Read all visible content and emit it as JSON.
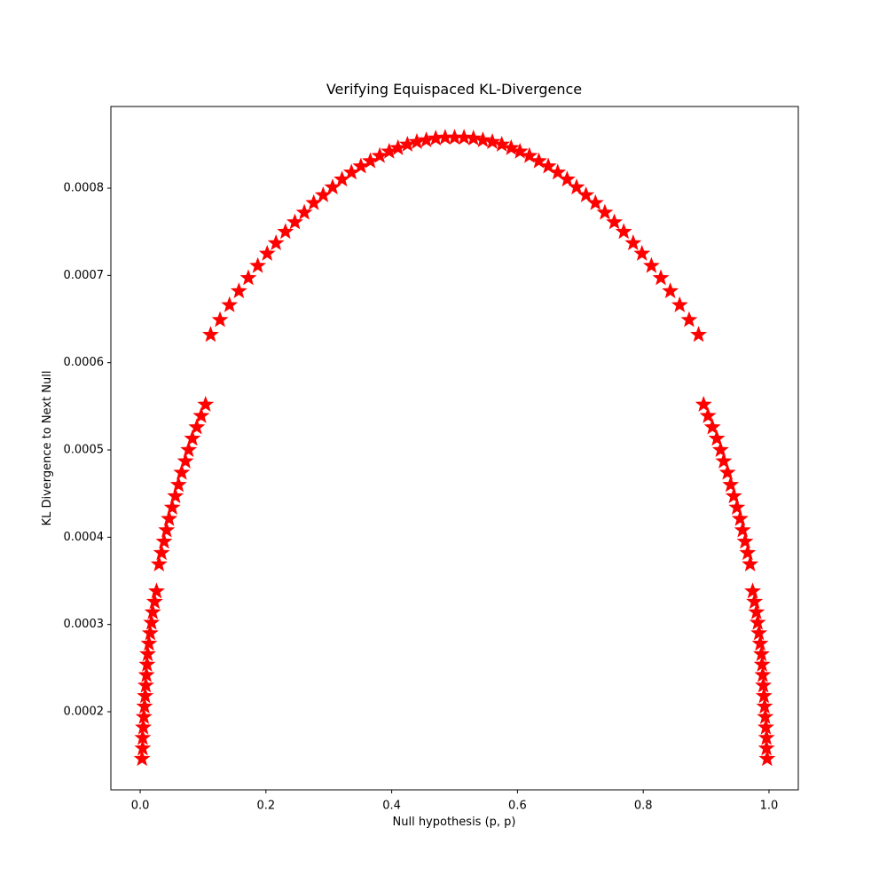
{
  "chart_data": {
    "type": "scatter",
    "title": "Verifying Equispaced KL-Divergence",
    "x_label": "Null hypothesis (p, p)",
    "y_label": "KL Divergence to Next Null",
    "color": "#ff0000",
    "marker": "star",
    "x": [
      0.003,
      0.004,
      0.004,
      0.005,
      0.006,
      0.007,
      0.008,
      0.009,
      0.01,
      0.011,
      0.012,
      0.014,
      0.016,
      0.018,
      0.02,
      0.023,
      0.026,
      0.03,
      0.034,
      0.038,
      0.042,
      0.046,
      0.051,
      0.056,
      0.061,
      0.066,
      0.072,
      0.077,
      0.083,
      0.09,
      0.097,
      0.104,
      0.112,
      0.127,
      0.142,
      0.157,
      0.172,
      0.187,
      0.202,
      0.216,
      0.231,
      0.246,
      0.261,
      0.276,
      0.291,
      0.306,
      0.321,
      0.336,
      0.351,
      0.366,
      0.381,
      0.396,
      0.41,
      0.425,
      0.44,
      0.455,
      0.47,
      0.485,
      0.5,
      0.515,
      0.53,
      0.545,
      0.56,
      0.575,
      0.59,
      0.604,
      0.619,
      0.634,
      0.649,
      0.664,
      0.679,
      0.694,
      0.709,
      0.724,
      0.739,
      0.754,
      0.769,
      0.784,
      0.798,
      0.813,
      0.828,
      0.843,
      0.858,
      0.873,
      0.888,
      0.896,
      0.903,
      0.91,
      0.917,
      0.923,
      0.928,
      0.934,
      0.939,
      0.944,
      0.949,
      0.954,
      0.958,
      0.962,
      0.966,
      0.97,
      0.974,
      0.977,
      0.98,
      0.982,
      0.984,
      0.986,
      0.988,
      0.989,
      0.99,
      0.991,
      0.992,
      0.993,
      0.994,
      0.995,
      0.996,
      0.996,
      0.997
    ],
    "values": [
      0.000146,
      0.000158,
      0.00017,
      0.000182,
      0.000194,
      0.000206,
      0.000218,
      0.00023,
      0.000242,
      0.000254,
      0.000266,
      0.000278,
      0.00029,
      0.000302,
      0.000314,
      0.000326,
      0.000338,
      0.000369,
      0.000382,
      0.000395,
      0.000408,
      0.000421,
      0.000434,
      0.000447,
      0.00046,
      0.000474,
      0.000487,
      0.0005,
      0.000513,
      0.000526,
      0.000539,
      0.000552,
      0.000632,
      0.000649,
      0.000666,
      0.000682,
      0.000697,
      0.000711,
      0.000725,
      0.000737,
      0.00075,
      0.000761,
      0.000772,
      0.000783,
      0.000792,
      0.000801,
      0.00081,
      0.000818,
      0.000825,
      0.000831,
      0.000837,
      0.000842,
      0.000846,
      0.00085,
      0.000853,
      0.000855,
      0.000857,
      0.000858,
      0.000858,
      0.000858,
      0.000857,
      0.000855,
      0.000853,
      0.00085,
      0.000846,
      0.000842,
      0.000837,
      0.000831,
      0.000825,
      0.000818,
      0.00081,
      0.000801,
      0.000792,
      0.000783,
      0.000772,
      0.000761,
      0.00075,
      0.000737,
      0.000725,
      0.000711,
      0.000697,
      0.000682,
      0.000666,
      0.000649,
      0.000632,
      0.000552,
      0.000539,
      0.000526,
      0.000513,
      0.0005,
      0.000487,
      0.000474,
      0.00046,
      0.000447,
      0.000434,
      0.000421,
      0.000408,
      0.000395,
      0.000382,
      0.000369,
      0.000338,
      0.000326,
      0.000314,
      0.000302,
      0.00029,
      0.000278,
      0.000266,
      0.000254,
      0.000242,
      0.00023,
      0.000218,
      0.000206,
      0.000194,
      0.000182,
      0.00017,
      0.000158,
      0.000146
    ],
    "xlim": [
      -0.0466,
      1.0466
    ],
    "ylim": [
      0.0001105,
      0.0008936
    ],
    "xticks": [
      {
        "value": 0,
        "label": "0.0"
      },
      0.2,
      0.4,
      0.6,
      0.8,
      {
        "value": 1,
        "label": "1.0"
      }
    ],
    "yticks": [
      0.0002,
      0.0003,
      0.0004,
      0.0005,
      0.0006,
      0.0007,
      0.0008
    ],
    "grid": false
  }
}
